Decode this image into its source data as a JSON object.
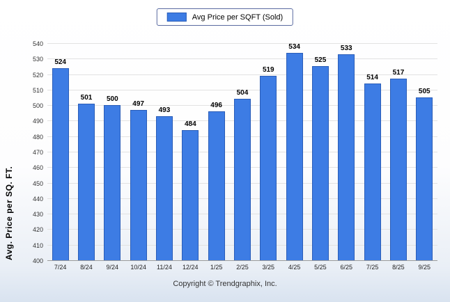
{
  "legend": {
    "label": "Avg Price per SQFT (Sold)"
  },
  "y_axis_title": "Avg. Price per SQ. FT.",
  "footer": {
    "copyright": "Copyright © Trendgraphix, Inc."
  },
  "chart_data": {
    "type": "bar",
    "title": "Avg Price per SQFT (Sold)",
    "categories": [
      "7/24",
      "8/24",
      "9/24",
      "10/24",
      "11/24",
      "12/24",
      "1/25",
      "2/25",
      "3/25",
      "4/25",
      "5/25",
      "6/25",
      "7/25",
      "8/25",
      "9/25"
    ],
    "values": [
      524,
      501,
      500,
      497,
      493,
      484,
      496,
      504,
      519,
      534,
      525,
      533,
      514,
      517,
      505
    ],
    "xlabel": "",
    "ylabel": "Avg. Price per SQ. FT.",
    "ylim": [
      400,
      540
    ],
    "ytick_step": 10,
    "grid": true,
    "legend_position": "top-center",
    "bar_color": "#3d7ce4",
    "bar_border_color": "#2a5db8"
  }
}
